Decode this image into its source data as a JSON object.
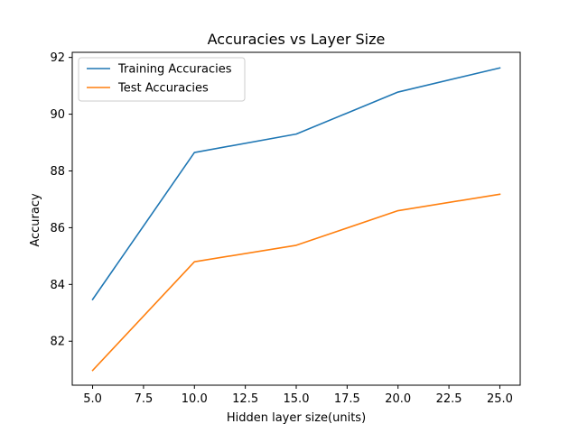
{
  "chart_data": {
    "type": "line",
    "title": "Accuracies vs Layer Size",
    "xlabel": "Hidden layer size(units)",
    "ylabel": "Accuracy",
    "x": [
      5,
      10,
      15,
      20,
      25
    ],
    "xlim": [
      4.0,
      26.0
    ],
    "ylim": [
      80.45,
      92.18
    ],
    "xticks": [
      5.0,
      7.5,
      10.0,
      12.5,
      15.0,
      17.5,
      20.0,
      22.5,
      25.0
    ],
    "xtick_labels": [
      "5.0",
      "7.5",
      "10.0",
      "12.5",
      "15.0",
      "17.5",
      "20.0",
      "22.5",
      "25.0"
    ],
    "yticks": [
      82,
      84,
      86,
      88,
      90,
      92
    ],
    "ytick_labels": [
      "82",
      "84",
      "86",
      "88",
      "90",
      "92"
    ],
    "grid": false,
    "legend_position": "upper-left",
    "series": [
      {
        "name": "Training Accuracies",
        "color": "#1f77b4",
        "values": [
          83.47,
          88.65,
          89.3,
          90.78,
          91.63
        ]
      },
      {
        "name": "Test Accuracies",
        "color": "#ff7f0e",
        "values": [
          80.97,
          84.8,
          85.38,
          86.6,
          87.18
        ]
      }
    ]
  }
}
